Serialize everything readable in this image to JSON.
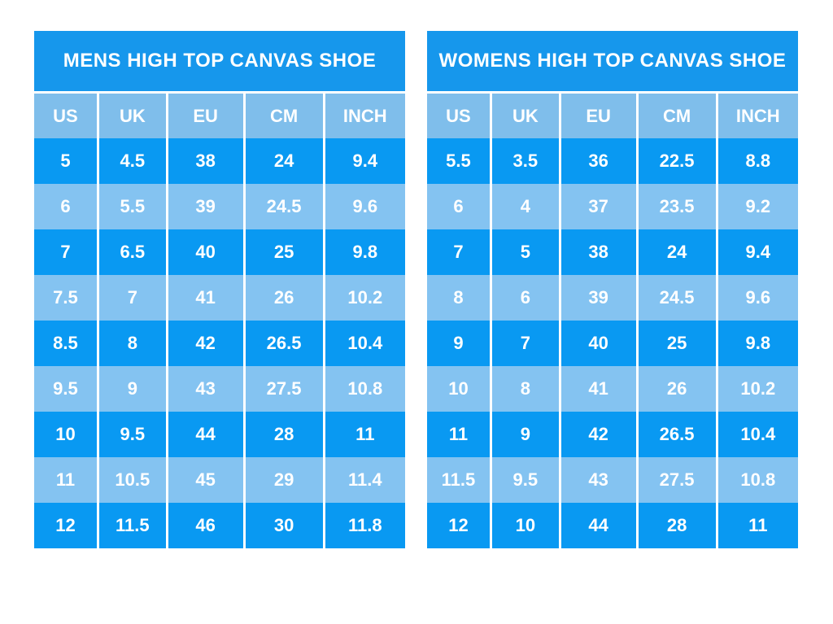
{
  "colors": {
    "background": "#ffffff",
    "title_bar": "#1697ec",
    "header_row": "#7fbeeb",
    "dark_row": "#0999f2",
    "light_row": "#84c3f1",
    "grid": "#ffffff",
    "text": "#ffffff"
  },
  "tables": [
    {
      "title": "MENS HIGH TOP CANVAS SHOE",
      "columns": [
        "US",
        "UK",
        "EU",
        "CM",
        "INCH"
      ],
      "rows": [
        [
          "5",
          "4.5",
          "38",
          "24",
          "9.4"
        ],
        [
          "6",
          "5.5",
          "39",
          "24.5",
          "9.6"
        ],
        [
          "7",
          "6.5",
          "40",
          "25",
          "9.8"
        ],
        [
          "7.5",
          "7",
          "41",
          "26",
          "10.2"
        ],
        [
          "8.5",
          "8",
          "42",
          "26.5",
          "10.4"
        ],
        [
          "9.5",
          "9",
          "43",
          "27.5",
          "10.8"
        ],
        [
          "10",
          "9.5",
          "44",
          "28",
          "11"
        ],
        [
          "11",
          "10.5",
          "45",
          "29",
          "11.4"
        ],
        [
          "12",
          "11.5",
          "46",
          "30",
          "11.8"
        ]
      ]
    },
    {
      "title": "WOMENS HIGH TOP CANVAS SHOE",
      "columns": [
        "US",
        "UK",
        "EU",
        "CM",
        "INCH"
      ],
      "rows": [
        [
          "5.5",
          "3.5",
          "36",
          "22.5",
          "8.8"
        ],
        [
          "6",
          "4",
          "37",
          "23.5",
          "9.2"
        ],
        [
          "7",
          "5",
          "38",
          "24",
          "9.4"
        ],
        [
          "8",
          "6",
          "39",
          "24.5",
          "9.6"
        ],
        [
          "9",
          "7",
          "40",
          "25",
          "9.8"
        ],
        [
          "10",
          "8",
          "41",
          "26",
          "10.2"
        ],
        [
          "11",
          "9",
          "42",
          "26.5",
          "10.4"
        ],
        [
          "11.5",
          "9.5",
          "43",
          "27.5",
          "10.8"
        ],
        [
          "12",
          "10",
          "44",
          "28",
          "11"
        ]
      ]
    }
  ],
  "chart_data": [
    {
      "type": "table",
      "title": "MENS HIGH TOP CANVAS SHOE",
      "columns": [
        "US",
        "UK",
        "EU",
        "CM",
        "INCH"
      ],
      "rows": [
        [
          "5",
          "4.5",
          "38",
          "24",
          "9.4"
        ],
        [
          "6",
          "5.5",
          "39",
          "24.5",
          "9.6"
        ],
        [
          "7",
          "6.5",
          "40",
          "25",
          "9.8"
        ],
        [
          "7.5",
          "7",
          "41",
          "26",
          "10.2"
        ],
        [
          "8.5",
          "8",
          "42",
          "26.5",
          "10.4"
        ],
        [
          "9.5",
          "9",
          "43",
          "27.5",
          "10.8"
        ],
        [
          "10",
          "9.5",
          "44",
          "28",
          "11"
        ],
        [
          "11",
          "10.5",
          "45",
          "29",
          "11.4"
        ],
        [
          "12",
          "11.5",
          "46",
          "30",
          "11.8"
        ]
      ]
    },
    {
      "type": "table",
      "title": "WOMENS HIGH TOP CANVAS SHOE",
      "columns": [
        "US",
        "UK",
        "EU",
        "CM",
        "INCH"
      ],
      "rows": [
        [
          "5.5",
          "3.5",
          "36",
          "22.5",
          "8.8"
        ],
        [
          "6",
          "4",
          "37",
          "23.5",
          "9.2"
        ],
        [
          "7",
          "5",
          "38",
          "24",
          "9.4"
        ],
        [
          "8",
          "6",
          "39",
          "24.5",
          "9.6"
        ],
        [
          "9",
          "7",
          "40",
          "25",
          "9.8"
        ],
        [
          "10",
          "8",
          "41",
          "26",
          "10.2"
        ],
        [
          "11",
          "9",
          "42",
          "26.5",
          "10.4"
        ],
        [
          "11.5",
          "9.5",
          "43",
          "27.5",
          "10.8"
        ],
        [
          "12",
          "10",
          "44",
          "28",
          "11"
        ]
      ]
    }
  ]
}
